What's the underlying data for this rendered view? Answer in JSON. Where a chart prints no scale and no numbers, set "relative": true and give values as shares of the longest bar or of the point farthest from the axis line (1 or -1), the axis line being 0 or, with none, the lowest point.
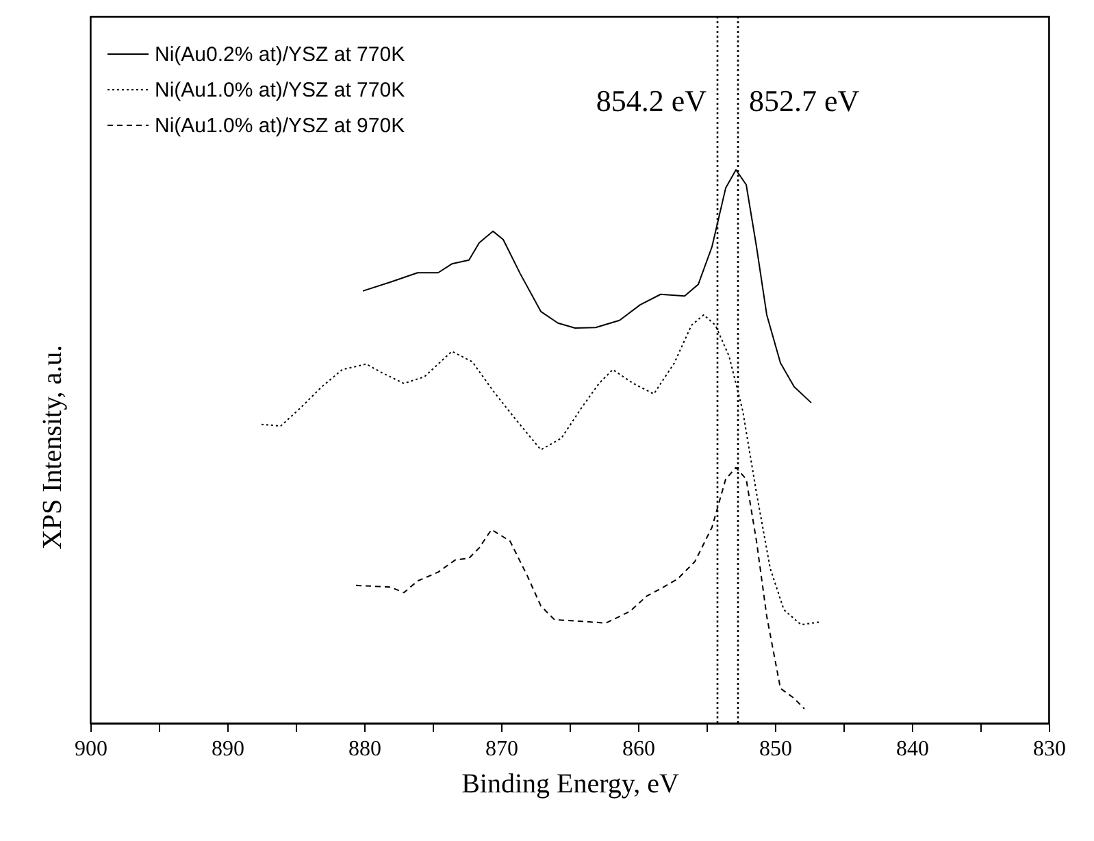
{
  "chart_data": {
    "type": "line",
    "relative": true,
    "xlabel": "Binding Energy, eV",
    "ylabel": "XPS Intensity, a.u.",
    "xlim": [
      900,
      830
    ],
    "xticks": [
      900,
      {
        "value": 895,
        "label": null
      },
      890,
      {
        "value": 885,
        "label": null
      },
      880,
      {
        "value": 875,
        "label": null
      },
      870,
      {
        "value": 865,
        "label": null
      },
      860,
      {
        "value": 855,
        "label": null
      },
      850,
      {
        "value": 845,
        "label": null
      },
      840,
      {
        "value": 835,
        "label": null
      },
      830
    ],
    "legend": "top left",
    "grid": false,
    "marker": "none",
    "ref_lines": [
      {
        "axis": "x",
        "value": 854.2,
        "label": "854.2 eV",
        "color": "#000000",
        "line_style": "dotted"
      },
      {
        "axis": "x",
        "value": 852.7,
        "label": "852.7 eV",
        "color": "#000000",
        "line_style": "dotted"
      }
    ],
    "series": [
      {
        "name": "Ni(Au0.2% at)/YSZ at 770K",
        "color": "#000000",
        "line_style": "solid",
        "x": [
          880.1,
          878.1,
          876.1,
          874.6,
          873.6,
          872.35,
          871.6,
          870.6,
          869.85,
          868.6,
          867.1,
          865.85,
          864.6,
          863.1,
          861.35,
          859.85,
          858.35,
          856.6,
          855.6,
          854.6,
          853.6,
          852.85,
          852.1,
          851.35,
          850.6,
          849.6,
          848.6,
          847.35
        ],
        "values": [
          0.781,
          0.797,
          0.814,
          0.814,
          0.83,
          0.837,
          0.868,
          0.889,
          0.874,
          0.812,
          0.744,
          0.723,
          0.714,
          0.715,
          0.728,
          0.756,
          0.775,
          0.772,
          0.793,
          0.861,
          0.967,
          1.0,
          0.973,
          0.861,
          0.738,
          0.651,
          0.608,
          0.579
        ]
      },
      {
        "name": "Ni(Au1.0% at)/YSZ at 770K",
        "color": "#000000",
        "line_style": "dotted",
        "x": [
          887.5,
          886.1,
          884.6,
          883.1,
          881.6,
          879.85,
          878.6,
          877.1,
          875.6,
          873.6,
          872.1,
          870.6,
          869.1,
          867.1,
          865.6,
          864.1,
          862.85,
          861.85,
          860.35,
          858.85,
          857.35,
          856.1,
          855.2,
          854.35,
          853.35,
          852.35,
          851.35,
          850.35,
          849.35,
          848.1,
          846.7
        ],
        "values": [
          0.54,
          0.537,
          0.571,
          0.608,
          0.639,
          0.649,
          0.632,
          0.614,
          0.626,
          0.672,
          0.653,
          0.601,
          0.554,
          0.494,
          0.515,
          0.571,
          0.614,
          0.639,
          0.614,
          0.595,
          0.651,
          0.719,
          0.738,
          0.719,
          0.663,
          0.564,
          0.416,
          0.28,
          0.205,
          0.178,
          0.183
        ]
      },
      {
        "name": "Ni(Au1.0% at)/YSZ at 970K",
        "color": "#000000",
        "line_style": "dashed",
        "x": [
          880.6,
          878.1,
          877.1,
          876.1,
          874.6,
          873.35,
          872.35,
          871.6,
          870.7,
          869.35,
          868.1,
          867.1,
          866.1,
          864.1,
          862.35,
          860.6,
          859.35,
          858.35,
          857.1,
          855.85,
          854.6,
          853.6,
          852.85,
          852.1,
          851.35,
          850.6,
          849.6,
          848.6,
          847.85
        ],
        "values": [
          0.249,
          0.246,
          0.236,
          0.257,
          0.273,
          0.295,
          0.298,
          0.317,
          0.35,
          0.329,
          0.267,
          0.212,
          0.187,
          0.184,
          0.181,
          0.202,
          0.23,
          0.243,
          0.261,
          0.292,
          0.354,
          0.441,
          0.462,
          0.441,
          0.329,
          0.193,
          0.063,
          0.045,
          0.026
        ]
      }
    ]
  }
}
